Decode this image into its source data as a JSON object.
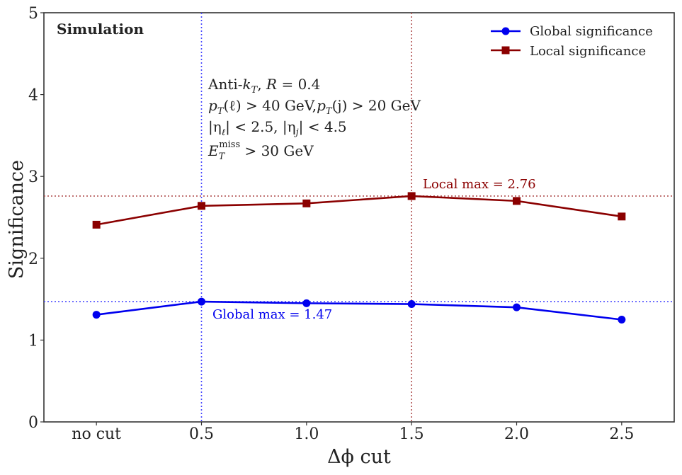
{
  "chart_data": {
    "type": "line",
    "categories": [
      "no cut",
      "0.5",
      "1.0",
      "1.5",
      "2.0",
      "2.5"
    ],
    "x": [
      0.0,
      0.5,
      1.0,
      1.5,
      2.0,
      2.5
    ],
    "xlim": [
      -0.25,
      2.75
    ],
    "ylim": [
      0,
      5
    ],
    "yticks": [
      0,
      1,
      2,
      3,
      4,
      5
    ],
    "xlabel": "Δϕ cut",
    "ylabel": "Significance",
    "series": [
      {
        "name": "Global significance",
        "color": "#0000ee",
        "marker": "circle",
        "values": [
          1.31,
          1.47,
          1.45,
          1.44,
          1.4,
          1.25
        ]
      },
      {
        "name": "Local significance",
        "color": "#8b0000",
        "marker": "square",
        "values": [
          2.41,
          2.64,
          2.67,
          2.76,
          2.7,
          2.51
        ]
      }
    ],
    "reference_lines": [
      {
        "orientation": "horizontal",
        "value": 2.76,
        "color": "#b05050"
      },
      {
        "orientation": "horizontal",
        "value": 1.47,
        "color": "#4a4aff"
      },
      {
        "orientation": "vertical",
        "value": 0.5,
        "color": "#4a4aff"
      },
      {
        "orientation": "vertical",
        "value": 1.5,
        "color": "#b05050"
      }
    ],
    "annotations": {
      "simulation": "Simulation",
      "local_max": "Local max = 2.76",
      "global_max": "Global max = 1.47",
      "cuts": {
        "line1_a": "Anti-",
        "line1_k": "k",
        "line1_T": "T",
        "line1_b": ", ",
        "line1_R": "R",
        "line1_c": " = 0.4",
        "line2_p": "p",
        "line2_T": "T",
        "line2_a": "(ℓ) > 40 GeV,",
        "line2_p2": "p",
        "line2_T2": "T",
        "line2_b": "(j) > 20 GeV",
        "line3_a": "|η",
        "line3_l": "ℓ",
        "line3_b": "| < 2.5, |η",
        "line3_j": "j",
        "line3_c": "| < 4.5",
        "line4_E": "E",
        "line4_T": "T",
        "line4_miss": "miss",
        "line4_b": " > 30 GeV"
      }
    },
    "legend_position": "top-right"
  }
}
